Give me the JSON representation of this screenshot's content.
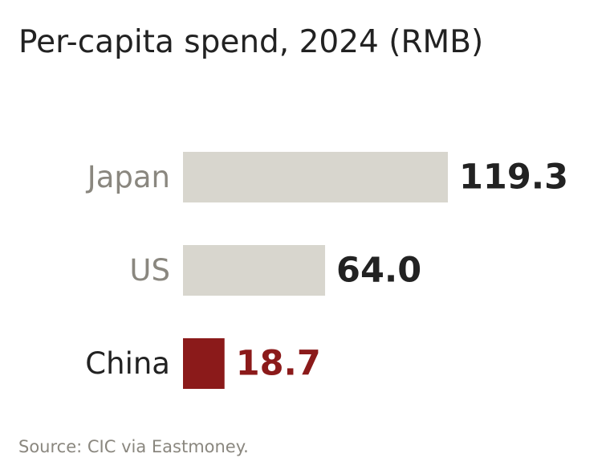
{
  "title": "Per-capita spend, 2024 (RMB)",
  "source": "Source: CIC via Eastmoney.",
  "colors": {
    "bar_default": "#d8d6ce",
    "bar_highlight": "#8b1a1a",
    "label_default": "#8a877f",
    "label_highlight": "#222222",
    "value_default": "#222222",
    "value_highlight": "#8b1a1a"
  },
  "chart_data": {
    "type": "bar",
    "orientation": "horizontal",
    "categories": [
      "Japan",
      "US",
      "China"
    ],
    "values": [
      119.3,
      64.0,
      18.7
    ],
    "value_labels": [
      "119.3",
      "64.0",
      "18.7"
    ],
    "highlight": "China",
    "title": "Per-capita spend, 2024 (RMB)",
    "xlabel": "",
    "ylabel": "",
    "grid": false,
    "legend": "none"
  }
}
